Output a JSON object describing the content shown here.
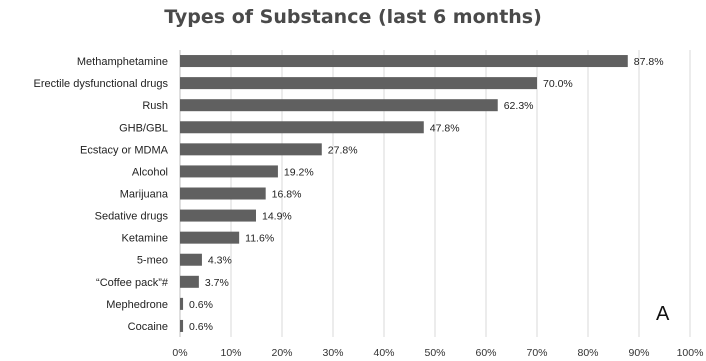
{
  "chart_data": {
    "type": "bar",
    "orientation": "horizontal",
    "title": "Types of Substance (last 6 months)",
    "xlabel": "",
    "ylabel": "",
    "xlim": [
      0,
      100
    ],
    "x_ticks": [
      "0%",
      "10%",
      "20%",
      "30%",
      "40%",
      "50%",
      "60%",
      "70%",
      "80%",
      "90%",
      "100%"
    ],
    "grid": "vertical gridlines",
    "categories": [
      "Methamphetamine",
      "Erectile dysfunctional drugs",
      "Rush",
      "GHB/GBL",
      "Ecstacy or MDMA",
      "Alcohol",
      "Marijuana",
      "Sedative drugs",
      "Ketamine",
      "5-meo",
      "“Coffee pack”#",
      "Mephedrone",
      "Cocaine"
    ],
    "values": [
      87.8,
      70.0,
      62.3,
      47.8,
      27.8,
      19.2,
      16.8,
      14.9,
      11.6,
      4.3,
      3.7,
      0.6,
      0.6
    ],
    "value_labels": [
      "87.8%",
      "70.0%",
      "62.3%",
      "47.8%",
      "27.8%",
      "19.2%",
      "16.8%",
      "14.9%",
      "11.6%",
      "4.3%",
      "3.7%",
      "0.6%",
      "0.6%"
    ],
    "bar_color": "#606060",
    "grid_color": "#d9d9d9",
    "panel_label": "A"
  }
}
